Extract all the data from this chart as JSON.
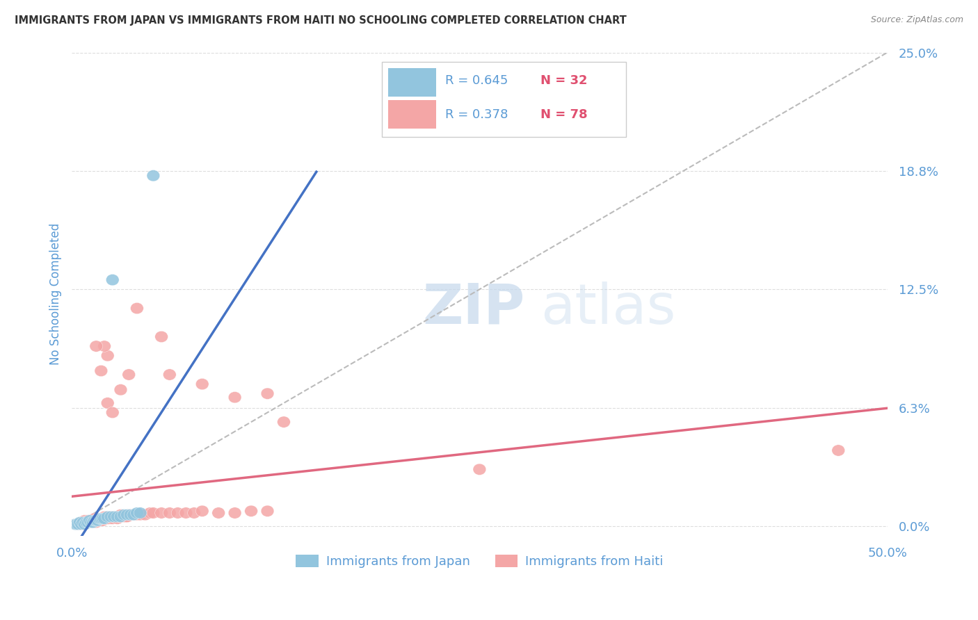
{
  "title": "IMMIGRANTS FROM JAPAN VS IMMIGRANTS FROM HAITI NO SCHOOLING COMPLETED CORRELATION CHART",
  "source": "Source: ZipAtlas.com",
  "ylabel": "No Schooling Completed",
  "yticks": [
    0.0,
    0.0625,
    0.125,
    0.1875,
    0.25
  ],
  "ytick_labels": [
    "0.0%",
    "6.3%",
    "12.5%",
    "18.8%",
    "25.0%"
  ],
  "xtick_vals": [
    0.0,
    0.5
  ],
  "xtick_labels": [
    "0.0%",
    "50.0%"
  ],
  "xlim": [
    0.0,
    0.5
  ],
  "ylim": [
    -0.005,
    0.25
  ],
  "legend_r1": "R = 0.645",
  "legend_n1": "N = 32",
  "legend_r2": "R = 0.378",
  "legend_n2": "N = 78",
  "japan_color": "#92C5DE",
  "haiti_color": "#F4A6A6",
  "japan_line_color": "#4472C4",
  "haiti_line_color": "#E06880",
  "diag_color": "#BBBBBB",
  "background_color": "#FFFFFF",
  "grid_color": "#DDDDDD",
  "title_color": "#333333",
  "label_color": "#5B9BD5",
  "watermark_zip_color": "#C5D8EC",
  "watermark_atlas_color": "#C5D8EC",
  "japan_scatter": [
    [
      0.002,
      0.001
    ],
    [
      0.003,
      0.001
    ],
    [
      0.004,
      0.001
    ],
    [
      0.005,
      0.002
    ],
    [
      0.006,
      0.001
    ],
    [
      0.007,
      0.002
    ],
    [
      0.008,
      0.001
    ],
    [
      0.009,
      0.002
    ],
    [
      0.01,
      0.002
    ],
    [
      0.011,
      0.003
    ],
    [
      0.012,
      0.002
    ],
    [
      0.013,
      0.002
    ],
    [
      0.014,
      0.003
    ],
    [
      0.015,
      0.003
    ],
    [
      0.016,
      0.003
    ],
    [
      0.017,
      0.004
    ],
    [
      0.018,
      0.004
    ],
    [
      0.019,
      0.004
    ],
    [
      0.02,
      0.004
    ],
    [
      0.022,
      0.005
    ],
    [
      0.024,
      0.005
    ],
    [
      0.026,
      0.005
    ],
    [
      0.028,
      0.005
    ],
    [
      0.03,
      0.005
    ],
    [
      0.032,
      0.006
    ],
    [
      0.034,
      0.006
    ],
    [
      0.036,
      0.006
    ],
    [
      0.038,
      0.006
    ],
    [
      0.04,
      0.007
    ],
    [
      0.042,
      0.007
    ],
    [
      0.05,
      0.185
    ],
    [
      0.025,
      0.13
    ]
  ],
  "haiti_scatter": [
    [
      0.003,
      0.001
    ],
    [
      0.005,
      0.001
    ],
    [
      0.006,
      0.002
    ],
    [
      0.007,
      0.001
    ],
    [
      0.008,
      0.003
    ],
    [
      0.008,
      0.001
    ],
    [
      0.009,
      0.002
    ],
    [
      0.01,
      0.002
    ],
    [
      0.01,
      0.003
    ],
    [
      0.011,
      0.002
    ],
    [
      0.012,
      0.002
    ],
    [
      0.012,
      0.003
    ],
    [
      0.013,
      0.002
    ],
    [
      0.013,
      0.003
    ],
    [
      0.014,
      0.003
    ],
    [
      0.014,
      0.004
    ],
    [
      0.015,
      0.002
    ],
    [
      0.015,
      0.003
    ],
    [
      0.016,
      0.003
    ],
    [
      0.016,
      0.004
    ],
    [
      0.017,
      0.003
    ],
    [
      0.017,
      0.004
    ],
    [
      0.018,
      0.003
    ],
    [
      0.018,
      0.004
    ],
    [
      0.019,
      0.003
    ],
    [
      0.02,
      0.004
    ],
    [
      0.02,
      0.005
    ],
    [
      0.021,
      0.004
    ],
    [
      0.022,
      0.004
    ],
    [
      0.022,
      0.005
    ],
    [
      0.023,
      0.004
    ],
    [
      0.024,
      0.005
    ],
    [
      0.025,
      0.004
    ],
    [
      0.025,
      0.005
    ],
    [
      0.026,
      0.005
    ],
    [
      0.027,
      0.005
    ],
    [
      0.028,
      0.004
    ],
    [
      0.029,
      0.005
    ],
    [
      0.03,
      0.005
    ],
    [
      0.03,
      0.006
    ],
    [
      0.032,
      0.005
    ],
    [
      0.033,
      0.005
    ],
    [
      0.034,
      0.005
    ],
    [
      0.035,
      0.006
    ],
    [
      0.036,
      0.006
    ],
    [
      0.038,
      0.006
    ],
    [
      0.04,
      0.006
    ],
    [
      0.042,
      0.006
    ],
    [
      0.045,
      0.006
    ],
    [
      0.048,
      0.007
    ],
    [
      0.05,
      0.007
    ],
    [
      0.055,
      0.007
    ],
    [
      0.06,
      0.007
    ],
    [
      0.065,
      0.007
    ],
    [
      0.07,
      0.007
    ],
    [
      0.075,
      0.007
    ],
    [
      0.08,
      0.008
    ],
    [
      0.09,
      0.007
    ],
    [
      0.1,
      0.007
    ],
    [
      0.11,
      0.008
    ],
    [
      0.12,
      0.008
    ],
    [
      0.03,
      0.072
    ],
    [
      0.022,
      0.065
    ],
    [
      0.025,
      0.06
    ],
    [
      0.06,
      0.08
    ],
    [
      0.08,
      0.075
    ],
    [
      0.1,
      0.068
    ],
    [
      0.12,
      0.07
    ],
    [
      0.022,
      0.09
    ],
    [
      0.018,
      0.082
    ],
    [
      0.02,
      0.095
    ],
    [
      0.055,
      0.1
    ],
    [
      0.035,
      0.08
    ],
    [
      0.015,
      0.095
    ],
    [
      0.47,
      0.04
    ],
    [
      0.04,
      0.115
    ],
    [
      0.13,
      0.055
    ],
    [
      0.25,
      0.03
    ]
  ]
}
